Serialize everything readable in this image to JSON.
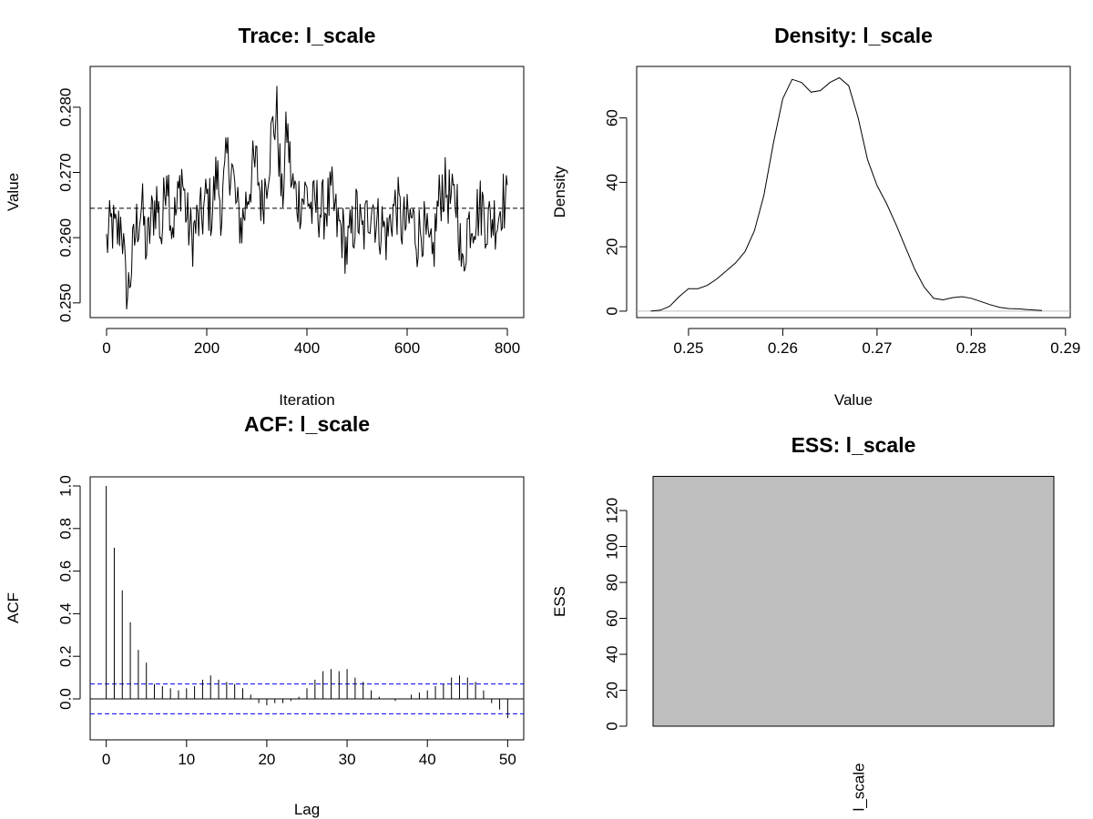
{
  "chart_data": [
    {
      "type": "line",
      "title": "Trace: l_scale",
      "xlabel": "Iteration",
      "ylabel": "Value",
      "xlim": [
        0,
        800
      ],
      "ylim": [
        0.249,
        0.285
      ],
      "xticks": [
        "0",
        "200",
        "400",
        "600",
        "800"
      ],
      "yticks": [
        "0.250",
        "0.260",
        "0.270",
        "0.280"
      ],
      "mean_line": 0.2645,
      "n_iterations": 800,
      "keypoints": {
        "x": [
          0,
          10,
          20,
          30,
          40,
          50,
          60,
          70,
          80,
          90,
          100,
          110,
          120,
          130,
          140,
          150,
          160,
          170,
          180,
          190,
          200,
          210,
          220,
          230,
          240,
          250,
          260,
          270,
          280,
          290,
          300,
          310,
          320,
          330,
          340,
          350,
          360,
          370,
          380,
          390,
          400,
          410,
          420,
          430,
          440,
          450,
          460,
          470,
          480,
          490,
          500,
          510,
          520,
          530,
          540,
          550,
          560,
          570,
          580,
          590,
          600,
          610,
          620,
          630,
          640,
          650,
          660,
          670,
          680,
          690,
          700,
          710,
          720,
          730,
          740,
          750,
          760,
          770,
          780,
          790,
          800
        ],
        "y": [
          0.259,
          0.262,
          0.26,
          0.263,
          0.25,
          0.256,
          0.262,
          0.265,
          0.258,
          0.263,
          0.266,
          0.26,
          0.272,
          0.262,
          0.264,
          0.27,
          0.263,
          0.26,
          0.262,
          0.263,
          0.266,
          0.264,
          0.27,
          0.264,
          0.272,
          0.271,
          0.264,
          0.262,
          0.266,
          0.27,
          0.271,
          0.265,
          0.27,
          0.276,
          0.279,
          0.265,
          0.277,
          0.268,
          0.266,
          0.266,
          0.267,
          0.264,
          0.265,
          0.264,
          0.265,
          0.266,
          0.262,
          0.261,
          0.258,
          0.261,
          0.264,
          0.26,
          0.263,
          0.266,
          0.262,
          0.262,
          0.26,
          0.264,
          0.265,
          0.262,
          0.262,
          0.263,
          0.26,
          0.262,
          0.259,
          0.256,
          0.264,
          0.268,
          0.267,
          0.265,
          0.266,
          0.254,
          0.262,
          0.263,
          0.264,
          0.265,
          0.262,
          0.263,
          0.263,
          0.266,
          0.265
        ]
      }
    },
    {
      "type": "line",
      "title": "Density: l_scale",
      "xlabel": "Value",
      "ylabel": "Density",
      "xlim": [
        0.2445,
        0.2905
      ],
      "ylim": [
        -2,
        76
      ],
      "xticks": [
        "0.25",
        "0.26",
        "0.27",
        "0.28",
        "0.29"
      ],
      "yticks": [
        "0",
        "20",
        "40",
        "60"
      ],
      "x": [
        0.246,
        0.247,
        0.248,
        0.249,
        0.25,
        0.251,
        0.252,
        0.253,
        0.254,
        0.255,
        0.256,
        0.257,
        0.258,
        0.259,
        0.26,
        0.261,
        0.262,
        0.263,
        0.264,
        0.265,
        0.266,
        0.267,
        0.268,
        0.269,
        0.27,
        0.271,
        0.272,
        0.273,
        0.274,
        0.275,
        0.276,
        0.277,
        0.278,
        0.279,
        0.28,
        0.281,
        0.282,
        0.283,
        0.284,
        0.285,
        0.286,
        0.287,
        0.2875
      ],
      "y": [
        0,
        0.3,
        1.5,
        4.5,
        7,
        7,
        8,
        10,
        12.5,
        15,
        18.5,
        25,
        36,
        52,
        66,
        72,
        71,
        68,
        68.5,
        71,
        72.5,
        70,
        60,
        47,
        39,
        33.5,
        27,
        20,
        13,
        7.5,
        4,
        3.5,
        4.2,
        4.5,
        4,
        3,
        2,
        1.2,
        0.8,
        0.7,
        0.5,
        0.3,
        0.2
      ]
    },
    {
      "type": "bar",
      "title": "ACF: l_scale",
      "xlabel": "Lag",
      "ylabel": "ACF",
      "xlim": [
        -2,
        52
      ],
      "ylim": [
        -0.2,
        1.05
      ],
      "xticks": [
        "0",
        "10",
        "20",
        "30",
        "40",
        "50"
      ],
      "yticks": [
        "0.0",
        "0.2",
        "0.4",
        "0.6",
        "0.8",
        "1.0"
      ],
      "confidence_bound": 0.07,
      "lags": [
        0,
        1,
        2,
        3,
        4,
        5,
        6,
        7,
        8,
        9,
        10,
        11,
        12,
        13,
        14,
        15,
        16,
        17,
        18,
        19,
        20,
        21,
        22,
        23,
        24,
        25,
        26,
        27,
        28,
        29,
        30,
        31,
        32,
        33,
        34,
        35,
        36,
        37,
        38,
        39,
        40,
        41,
        42,
        43,
        44,
        45,
        46,
        47,
        48,
        49,
        50
      ],
      "values": [
        1.0,
        0.71,
        0.51,
        0.36,
        0.23,
        0.17,
        0.07,
        0.06,
        0.05,
        0.04,
        0.05,
        0.06,
        0.09,
        0.11,
        0.09,
        0.08,
        0.07,
        0.05,
        0.02,
        -0.02,
        -0.03,
        -0.02,
        -0.02,
        -0.01,
        0.01,
        0.05,
        0.09,
        0.13,
        0.14,
        0.13,
        0.14,
        0.1,
        0.08,
        0.04,
        0.01,
        0.0,
        -0.01,
        0.0,
        0.02,
        0.03,
        0.04,
        0.06,
        0.07,
        0.1,
        0.11,
        0.1,
        0.08,
        0.04,
        -0.02,
        -0.05,
        -0.09
      ]
    },
    {
      "type": "bar",
      "title": "ESS: l_scale",
      "ylabel": "ESS",
      "categories": [
        "l_scale"
      ],
      "values": [
        139
      ],
      "ylim": [
        0,
        139
      ],
      "yticks": [
        "0",
        "20",
        "40",
        "60",
        "80",
        "100",
        "120"
      ],
      "bar_color": "#bebebe"
    }
  ]
}
